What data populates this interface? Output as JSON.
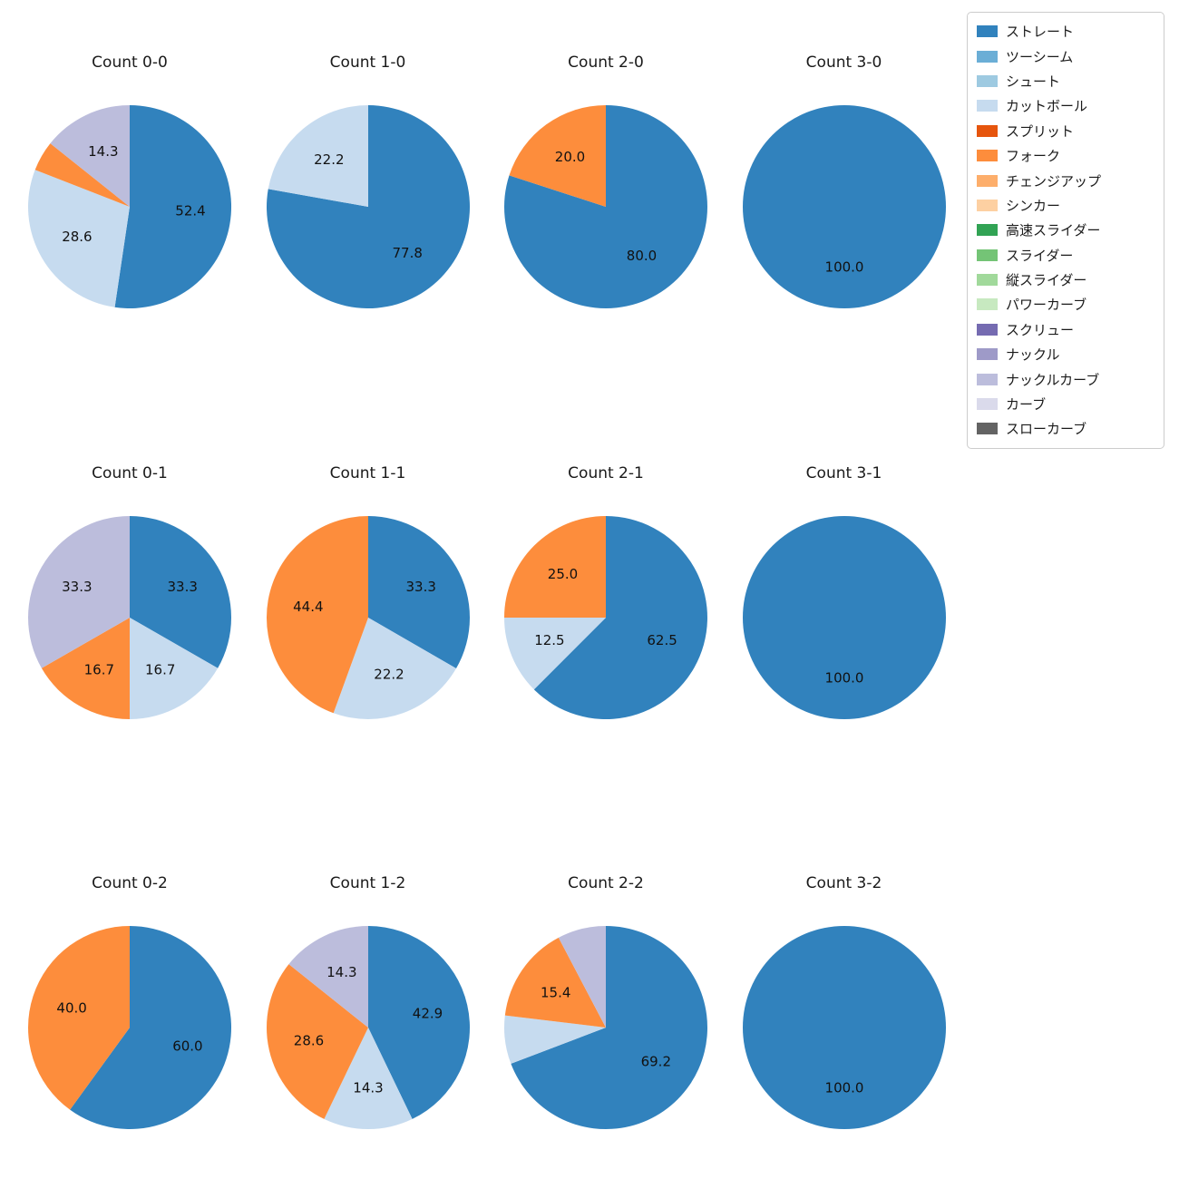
{
  "figure": {
    "background": "#ffffff"
  },
  "legend": {
    "position": "top-right",
    "items": [
      {
        "label": "ストレート",
        "color": "#3182bd"
      },
      {
        "label": "ツーシーム",
        "color": "#6baed6"
      },
      {
        "label": "シュート",
        "color": "#9ecae1"
      },
      {
        "label": "カットボール",
        "color": "#c6dbef"
      },
      {
        "label": "スプリット",
        "color": "#e6550d"
      },
      {
        "label": "フォーク",
        "color": "#fd8d3c"
      },
      {
        "label": "チェンジアップ",
        "color": "#fdae6b"
      },
      {
        "label": "シンカー",
        "color": "#fdd0a2"
      },
      {
        "label": "高速スライダー",
        "color": "#31a354"
      },
      {
        "label": "スライダー",
        "color": "#74c476"
      },
      {
        "label": "縦スライダー",
        "color": "#a1d99b"
      },
      {
        "label": "パワーカーブ",
        "color": "#c7e9c0"
      },
      {
        "label": "スクリュー",
        "color": "#756bb1"
      },
      {
        "label": "ナックル",
        "color": "#9e9ac8"
      },
      {
        "label": "ナックルカーブ",
        "color": "#bcbddc"
      },
      {
        "label": "カーブ",
        "color": "#dadaeb"
      },
      {
        "label": "スローカーブ",
        "color": "#636363"
      }
    ]
  },
  "chart_data": [
    {
      "type": "pie",
      "title": "Count 0-0",
      "start_angle": "top",
      "direction": "clockwise",
      "slices": [
        {
          "label": "ストレート",
          "value": 52.4,
          "pct": "52.4"
        },
        {
          "label": "カットボール",
          "value": 28.6,
          "pct": "28.6"
        },
        {
          "label": "フォーク",
          "value": 4.8,
          "pct": ""
        },
        {
          "label": "ナックルカーブ",
          "value": 14.3,
          "pct": "14.3"
        }
      ]
    },
    {
      "type": "pie",
      "title": "Count 1-0",
      "start_angle": "top",
      "direction": "clockwise",
      "slices": [
        {
          "label": "ストレート",
          "value": 77.8,
          "pct": "77.8"
        },
        {
          "label": "カットボール",
          "value": 22.2,
          "pct": "22.2"
        }
      ]
    },
    {
      "type": "pie",
      "title": "Count 2-0",
      "start_angle": "top",
      "direction": "clockwise",
      "slices": [
        {
          "label": "ストレート",
          "value": 80.0,
          "pct": "80.0"
        },
        {
          "label": "フォーク",
          "value": 20.0,
          "pct": "20.0"
        }
      ]
    },
    {
      "type": "pie",
      "title": "Count 3-0",
      "start_angle": "top",
      "direction": "clockwise",
      "slices": [
        {
          "label": "ストレート",
          "value": 100.0,
          "pct": "100.0"
        }
      ]
    },
    {
      "type": "pie",
      "title": "Count 0-1",
      "start_angle": "top",
      "direction": "clockwise",
      "slices": [
        {
          "label": "ストレート",
          "value": 33.3,
          "pct": "33.3"
        },
        {
          "label": "カットボール",
          "value": 16.7,
          "pct": "16.7"
        },
        {
          "label": "フォーク",
          "value": 16.7,
          "pct": "16.7"
        },
        {
          "label": "ナックルカーブ",
          "value": 33.3,
          "pct": "33.3"
        }
      ]
    },
    {
      "type": "pie",
      "title": "Count 1-1",
      "start_angle": "top",
      "direction": "clockwise",
      "slices": [
        {
          "label": "ストレート",
          "value": 33.3,
          "pct": "33.3"
        },
        {
          "label": "カットボール",
          "value": 22.2,
          "pct": "22.2"
        },
        {
          "label": "フォーク",
          "value": 44.4,
          "pct": "44.4"
        }
      ]
    },
    {
      "type": "pie",
      "title": "Count 2-1",
      "start_angle": "top",
      "direction": "clockwise",
      "slices": [
        {
          "label": "ストレート",
          "value": 62.5,
          "pct": "62.5"
        },
        {
          "label": "カットボール",
          "value": 12.5,
          "pct": "12.5"
        },
        {
          "label": "フォーク",
          "value": 25.0,
          "pct": "25.0"
        }
      ]
    },
    {
      "type": "pie",
      "title": "Count 3-1",
      "start_angle": "top",
      "direction": "clockwise",
      "slices": [
        {
          "label": "ストレート",
          "value": 100.0,
          "pct": "100.0"
        }
      ]
    },
    {
      "type": "pie",
      "title": "Count 0-2",
      "start_angle": "top",
      "direction": "clockwise",
      "slices": [
        {
          "label": "ストレート",
          "value": 60.0,
          "pct": "60.0"
        },
        {
          "label": "フォーク",
          "value": 40.0,
          "pct": "40.0"
        }
      ]
    },
    {
      "type": "pie",
      "title": "Count 1-2",
      "start_angle": "top",
      "direction": "clockwise",
      "slices": [
        {
          "label": "ストレート",
          "value": 42.9,
          "pct": "42.9"
        },
        {
          "label": "カットボール",
          "value": 14.3,
          "pct": "14.3"
        },
        {
          "label": "フォーク",
          "value": 28.6,
          "pct": "28.6"
        },
        {
          "label": "ナックルカーブ",
          "value": 14.3,
          "pct": "14.3"
        }
      ]
    },
    {
      "type": "pie",
      "title": "Count 2-2",
      "start_angle": "top",
      "direction": "clockwise",
      "slices": [
        {
          "label": "ストレート",
          "value": 69.2,
          "pct": "69.2"
        },
        {
          "label": "カットボール",
          "value": 7.7,
          "pct": ""
        },
        {
          "label": "フォーク",
          "value": 15.4,
          "pct": "15.4"
        },
        {
          "label": "ナックルカーブ",
          "value": 7.7,
          "pct": ""
        }
      ]
    },
    {
      "type": "pie",
      "title": "Count 3-2",
      "start_angle": "top",
      "direction": "clockwise",
      "slices": [
        {
          "label": "ストレート",
          "value": 100.0,
          "pct": "100.0"
        }
      ]
    }
  ]
}
